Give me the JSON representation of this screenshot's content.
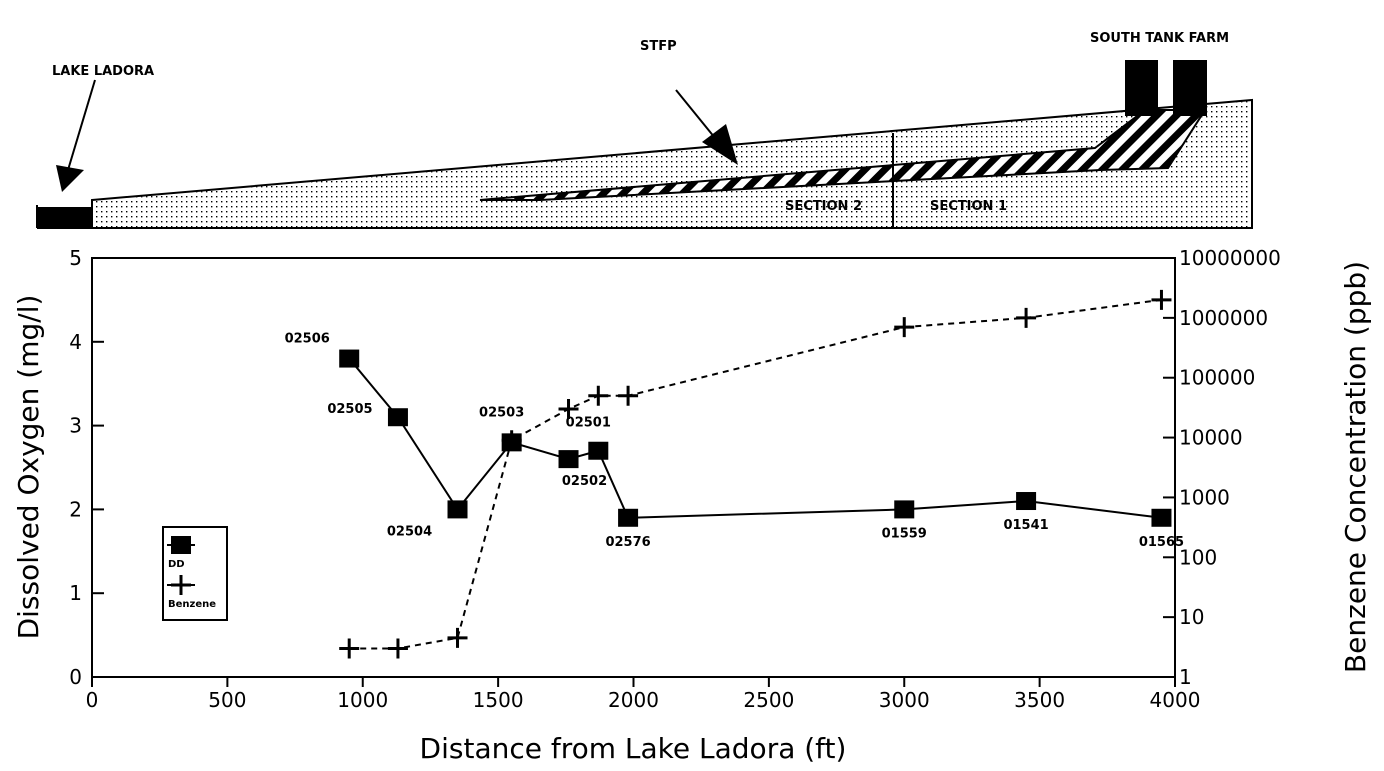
{
  "diagram": {
    "lake_label": "LAKE LADORA",
    "stfp_label": "STFP",
    "tank_farm_label": "SOUTH TANK FARM",
    "section2_label": "SECTION 2",
    "section1_label": "SECTION 1"
  },
  "chart_data": {
    "type": "line",
    "x_label": "Distance from Lake Ladora (ft)",
    "y_label": "Dissolved Oxygen (mg/l)",
    "y2_label": "Benzene Concentration (ppb)",
    "x": [
      950,
      1130,
      1350,
      1550,
      1760,
      1870,
      1980,
      3000,
      3450,
      3950
    ],
    "series": [
      {
        "name": "DD",
        "color": "#000000",
        "marker": "square",
        "values": [
          3.8,
          3.1,
          2.0,
          2.8,
          2.6,
          2.7,
          1.9,
          2.0,
          2.1,
          1.9
        ],
        "labels": [
          "02506",
          "02505",
          "02504",
          "02503",
          "02502",
          "02501",
          "02576",
          "01559",
          "01541",
          "01565"
        ]
      },
      {
        "name": "Benzene",
        "color": "#000000",
        "marker": "plus",
        "axis": "y2",
        "dashed": true,
        "values": [
          3,
          3,
          4.5,
          9000,
          30000,
          50000,
          50000,
          700000,
          1000000,
          2000000
        ]
      }
    ],
    "xlim": [
      0,
      4000
    ],
    "xticks": [
      0,
      500,
      1000,
      1500,
      2000,
      2500,
      3000,
      3500,
      4000
    ],
    "ylim": [
      0,
      5
    ],
    "yticks": [
      0,
      1,
      2,
      3,
      4,
      5
    ],
    "y2lim": [
      1,
      10000000
    ],
    "y2ticks": [
      1,
      10,
      100,
      1000,
      10000,
      100000,
      1000000,
      10000000
    ],
    "y2log": true,
    "legend": "lower-left"
  }
}
